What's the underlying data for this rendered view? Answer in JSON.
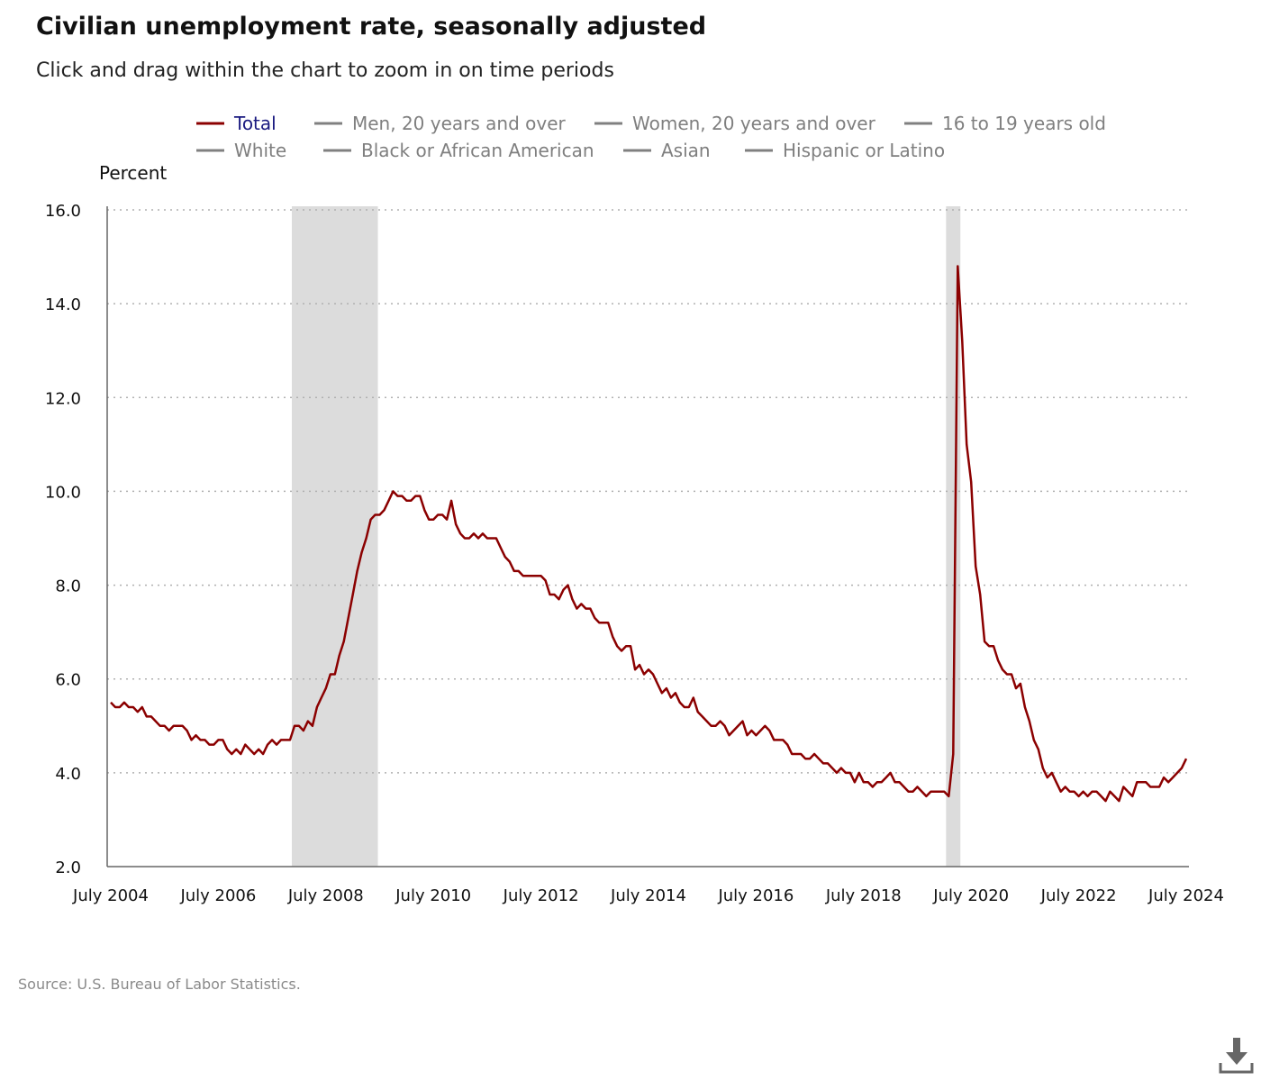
{
  "title": "Civilian unemployment rate, seasonally adjusted",
  "subtitle": "Click and drag within the chart to zoom in on time periods",
  "source": "Source: U.S. Bureau of Labor Statistics.",
  "download_icon": "download-icon",
  "colors": {
    "active_series": "#8b0000",
    "inactive_series": "#808080",
    "active_legend_text": "#1a1a80",
    "inactive_legend_text": "#7f7f7f",
    "recession": "#dcdcdc",
    "grid": "#b0b0b0"
  },
  "legend": [
    {
      "label": "Total",
      "active": true
    },
    {
      "label": "Men, 20 years and over",
      "active": false
    },
    {
      "label": "Women, 20 years and over",
      "active": false
    },
    {
      "label": "16 to 19 years old",
      "active": false
    },
    {
      "label": "White",
      "active": false
    },
    {
      "label": "Black or African American",
      "active": false
    },
    {
      "label": "Asian",
      "active": false
    },
    {
      "label": "Hispanic or Latino",
      "active": false
    }
  ],
  "chart_data": {
    "type": "line",
    "title": "Civilian unemployment rate, seasonally adjusted",
    "ylabel": "Percent",
    "xlabel": "",
    "ylim": [
      2.0,
      16.0
    ],
    "yticks": [
      "2.0",
      "4.0",
      "6.0",
      "8.0",
      "10.0",
      "12.0",
      "14.0",
      "16.0"
    ],
    "xticks": [
      "July 2004",
      "July 2006",
      "July 2008",
      "July 2010",
      "July 2012",
      "July 2014",
      "July 2016",
      "July 2018",
      "July 2020",
      "July 2022",
      "July 2024"
    ],
    "x_start": "2004-07",
    "x_end": "2024-07",
    "frequency": "monthly",
    "grid": "horizontal dotted",
    "legend_position": "top",
    "recessions": [
      {
        "start": "2007-12",
        "end": "2009-06"
      },
      {
        "start": "2020-02",
        "end": "2020-04"
      }
    ],
    "series": [
      {
        "name": "Total",
        "values": [
          5.5,
          5.4,
          5.4,
          5.5,
          5.4,
          5.4,
          5.3,
          5.4,
          5.2,
          5.2,
          5.1,
          5.0,
          5.0,
          4.9,
          5.0,
          5.0,
          5.0,
          4.9,
          4.7,
          4.8,
          4.7,
          4.7,
          4.6,
          4.6,
          4.7,
          4.7,
          4.5,
          4.4,
          4.5,
          4.4,
          4.6,
          4.5,
          4.4,
          4.5,
          4.4,
          4.6,
          4.7,
          4.6,
          4.7,
          4.7,
          4.7,
          5.0,
          5.0,
          4.9,
          5.1,
          5.0,
          5.4,
          5.6,
          5.8,
          6.1,
          6.1,
          6.5,
          6.8,
          7.3,
          7.8,
          8.3,
          8.7,
          9.0,
          9.4,
          9.5,
          9.5,
          9.6,
          9.8,
          10.0,
          9.9,
          9.9,
          9.8,
          9.8,
          9.9,
          9.9,
          9.6,
          9.4,
          9.4,
          9.5,
          9.5,
          9.4,
          9.8,
          9.3,
          9.1,
          9.0,
          9.0,
          9.1,
          9.0,
          9.1,
          9.0,
          9.0,
          9.0,
          8.8,
          8.6,
          8.5,
          8.3,
          8.3,
          8.2,
          8.2,
          8.2,
          8.2,
          8.2,
          8.1,
          7.8,
          7.8,
          7.7,
          7.9,
          8.0,
          7.7,
          7.5,
          7.6,
          7.5,
          7.5,
          7.3,
          7.2,
          7.2,
          7.2,
          6.9,
          6.7,
          6.6,
          6.7,
          6.7,
          6.2,
          6.3,
          6.1,
          6.2,
          6.1,
          5.9,
          5.7,
          5.8,
          5.6,
          5.7,
          5.5,
          5.4,
          5.4,
          5.6,
          5.3,
          5.2,
          5.1,
          5.0,
          5.0,
          5.1,
          5.0,
          4.8,
          4.9,
          5.0,
          5.1,
          4.8,
          4.9,
          4.8,
          4.9,
          5.0,
          4.9,
          4.7,
          4.7,
          4.7,
          4.6,
          4.4,
          4.4,
          4.4,
          4.3,
          4.3,
          4.4,
          4.3,
          4.2,
          4.2,
          4.1,
          4.0,
          4.1,
          4.0,
          4.0,
          3.8,
          4.0,
          3.8,
          3.8,
          3.7,
          3.8,
          3.8,
          3.9,
          4.0,
          3.8,
          3.8,
          3.7,
          3.6,
          3.6,
          3.7,
          3.6,
          3.5,
          3.6,
          3.6,
          3.6,
          3.6,
          3.5,
          4.4,
          14.8,
          13.2,
          11.0,
          10.2,
          8.4,
          7.8,
          6.8,
          6.7,
          6.7,
          6.4,
          6.2,
          6.1,
          6.1,
          5.8,
          5.9,
          5.4,
          5.1,
          4.7,
          4.5,
          4.1,
          3.9,
          4.0,
          3.8,
          3.6,
          3.7,
          3.6,
          3.6,
          3.5,
          3.6,
          3.5,
          3.6,
          3.6,
          3.5,
          3.4,
          3.6,
          3.5,
          3.4,
          3.7,
          3.6,
          3.5,
          3.8,
          3.8,
          3.8,
          3.7,
          3.7,
          3.7,
          3.9,
          3.8,
          3.9,
          4.0,
          4.1,
          4.3
        ]
      }
    ]
  }
}
